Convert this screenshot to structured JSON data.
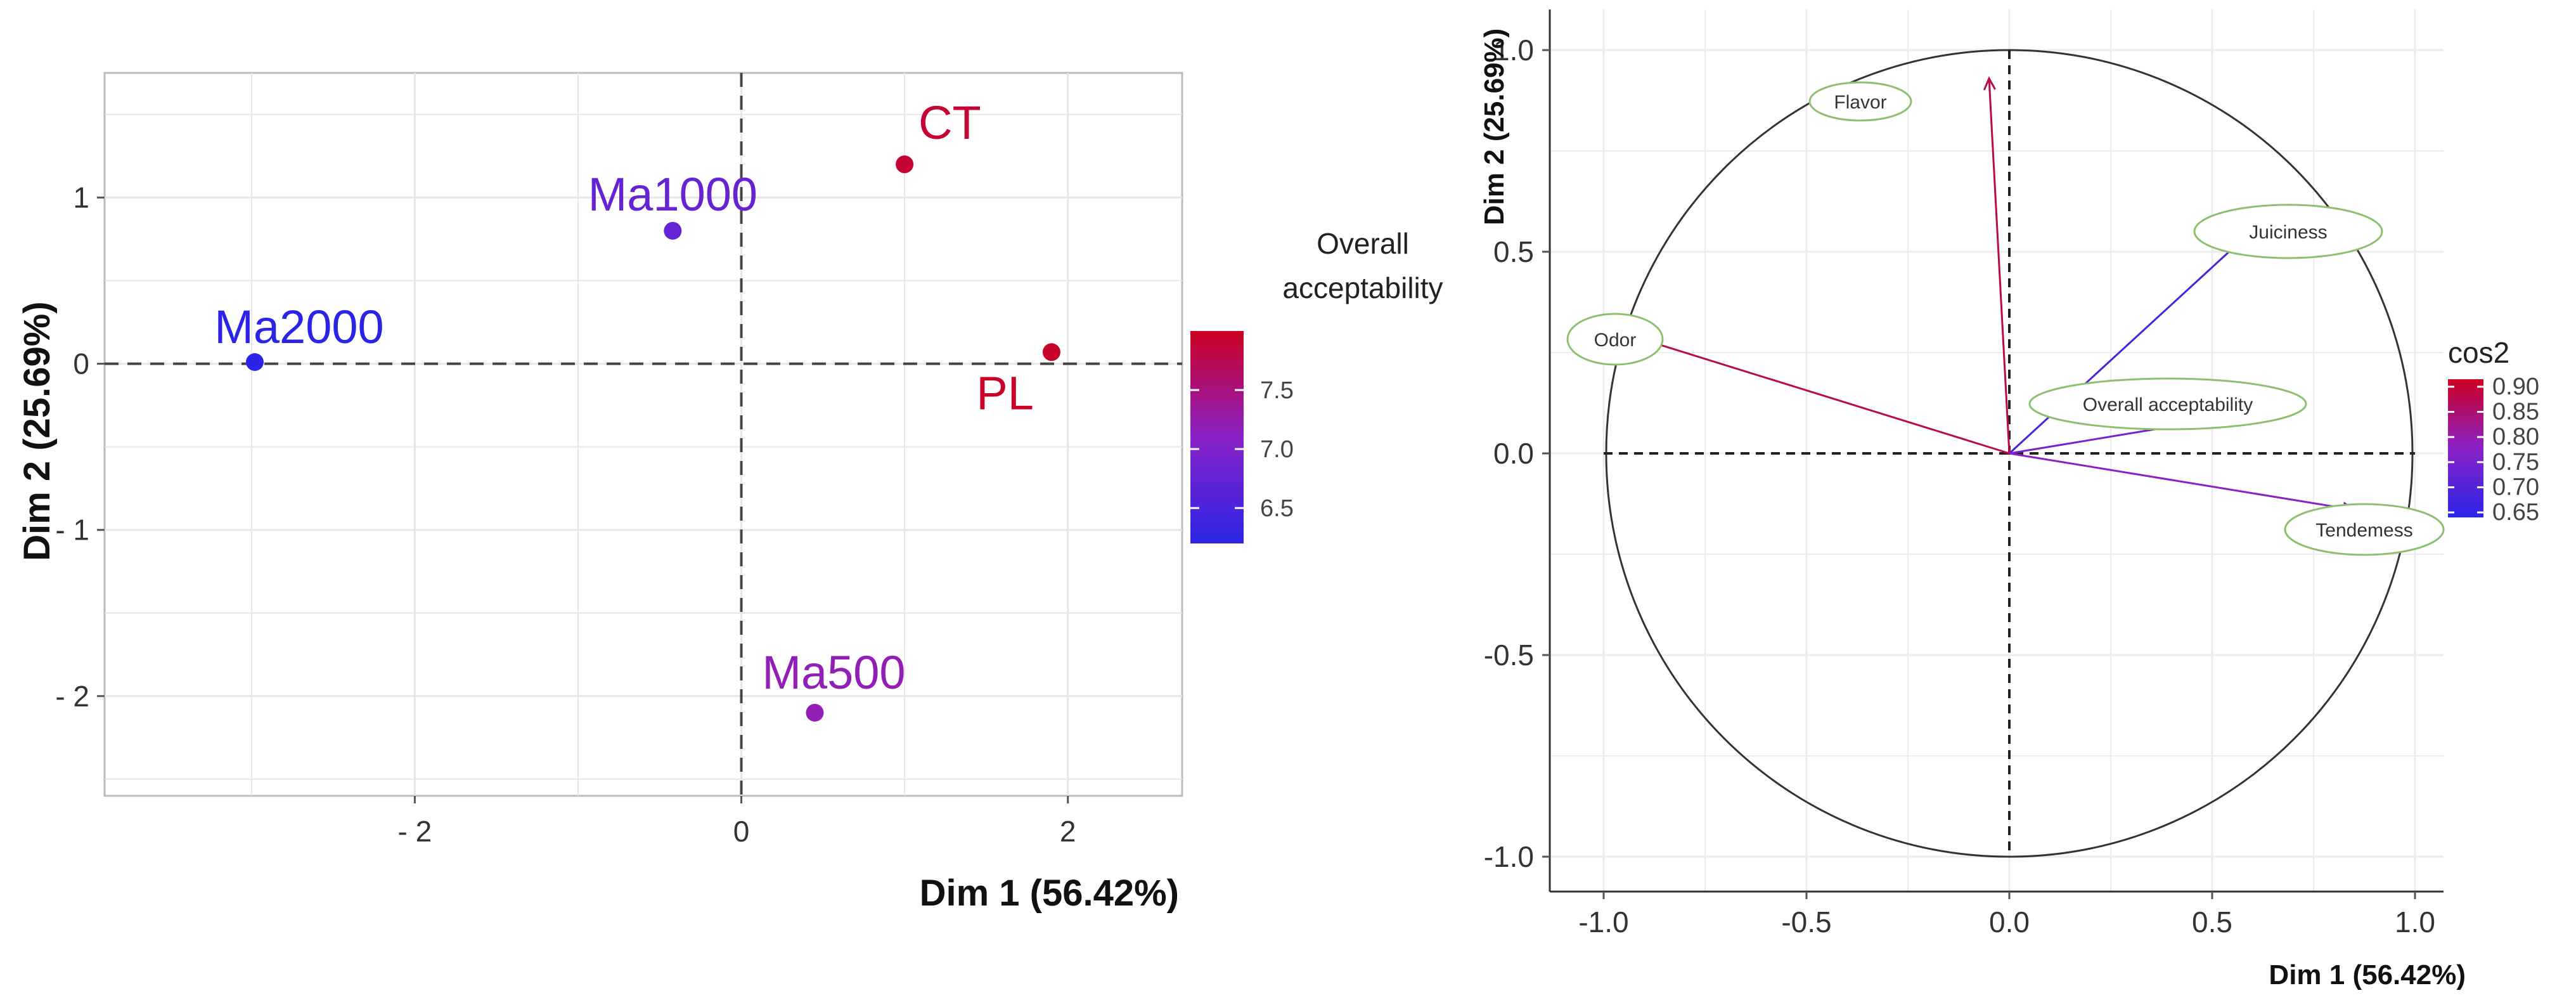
{
  "chart_data": [
    {
      "type": "scatter",
      "title": "",
      "xlabel": "Dim 1 (56.42%)",
      "ylabel": "Dim 2 (25.69%)",
      "xlim": [
        -3.9,
        2.7
      ],
      "ylim": [
        -2.6,
        1.75
      ],
      "xticks": [
        -2,
        0,
        2
      ],
      "xtick_labels": [
        "- 2",
        "0",
        "2"
      ],
      "yticks": [
        1,
        0,
        -1,
        -2
      ],
      "ytick_labels": [
        "1",
        "0",
        "- 1",
        "- 2"
      ],
      "points": [
        {
          "name": "CT",
          "x": 1.0,
          "y": 1.2,
          "value": 7.9
        },
        {
          "name": "Ma1000",
          "x": -0.42,
          "y": 0.8,
          "value": 6.75
        },
        {
          "name": "Ma2000",
          "x": -2.98,
          "y": 0.01,
          "value": 6.2
        },
        {
          "name": "PL",
          "x": 1.9,
          "y": 0.07,
          "value": 7.95
        },
        {
          "name": "Ma500",
          "x": 0.45,
          "y": -2.1,
          "value": 7.2
        }
      ],
      "legend": {
        "title_line1": "Overall",
        "title_line2": "acceptability",
        "ticks": [
          7.5,
          7.0,
          6.5
        ],
        "tick_labels": [
          "7.5",
          "7.0",
          "6.5"
        ],
        "range": [
          6.2,
          8.0
        ],
        "colors": [
          "#2b24e6",
          "#cc0020"
        ]
      },
      "grid": true
    },
    {
      "type": "scatter",
      "subtype": "correlation-circle",
      "xlabel": "Dim 1 (56.42%)",
      "ylabel": "Dim 2 (25.69%)",
      "xlim": [
        -1.1,
        1.1
      ],
      "ylim": [
        -1.12,
        1.12
      ],
      "xticks": [
        -1.0,
        -0.5,
        0.0,
        0.5,
        1.0
      ],
      "xtick_labels": [
        "-1.0",
        "-0.5",
        "0.0",
        "0.5",
        "1.0"
      ],
      "yticks": [
        1.0,
        0.5,
        0.0,
        -0.5,
        -1.0
      ],
      "ytick_labels": [
        "1.0",
        "0.5",
        "0.0",
        "-0.5",
        "-1.0"
      ],
      "variables": [
        {
          "name": "Flavor",
          "x": -0.05,
          "y": 0.93,
          "cos2": 0.88
        },
        {
          "name": "Juiciness",
          "x": 0.65,
          "y": 0.6,
          "cos2": 0.68
        },
        {
          "name": "Odor",
          "x": -0.96,
          "y": 0.3,
          "cos2": 0.88
        },
        {
          "name": "Overall acceptability",
          "x": 0.6,
          "y": 0.1,
          "cos2": 0.75
        },
        {
          "name": "Tendemess",
          "x": 0.85,
          "y": -0.14,
          "cos2": 0.78
        }
      ],
      "legend": {
        "title": "cos2",
        "ticks": [
          0.9,
          0.85,
          0.8,
          0.75,
          0.7,
          0.65
        ],
        "tick_labels": [
          "0.90",
          "0.85",
          "0.80",
          "0.75",
          "0.70",
          "0.65"
        ],
        "range": [
          0.64,
          0.915
        ],
        "colors": [
          "#2b24e6",
          "#cc0020"
        ]
      },
      "grid": true
    }
  ]
}
